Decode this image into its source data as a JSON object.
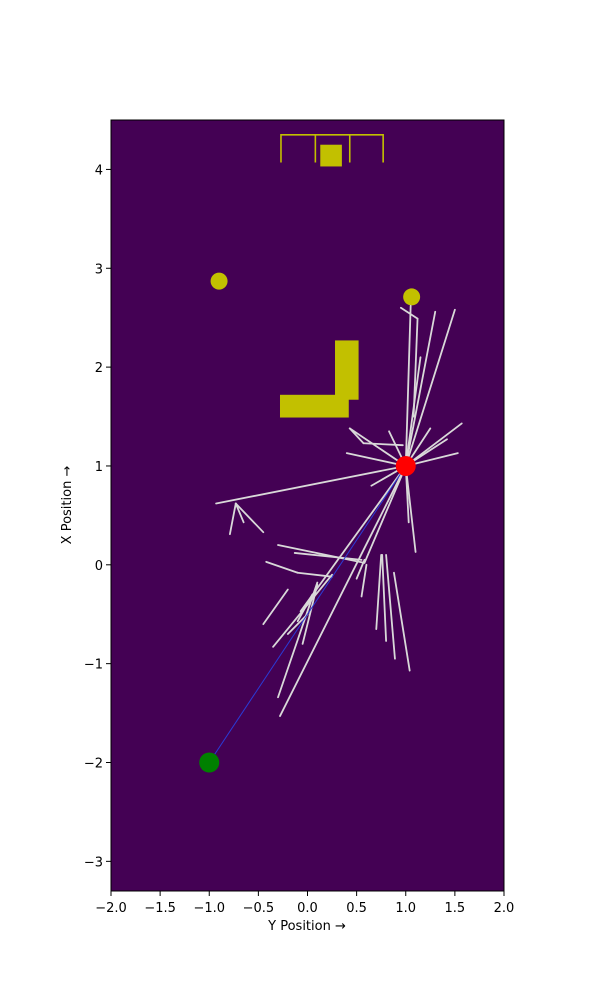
{
  "colors": {
    "background": "#440154",
    "obstacle": "#c2c000",
    "tree_edge": "#d9d9d9",
    "path": "#2b3bd6",
    "start": "#008000",
    "goal": "#ff0000"
  },
  "chart_data": {
    "type": "scatter",
    "title": "",
    "xlabel": "Y Position →",
    "ylabel": "X Position →",
    "xlim": [
      -2.0,
      2.0
    ],
    "ylim": [
      -3.3,
      4.5
    ],
    "grid": false,
    "x_ticks": [
      -2.0,
      -1.5,
      -1.0,
      -0.5,
      0.0,
      0.5,
      1.0,
      1.5,
      2.0
    ],
    "x_tick_labels": [
      "−2.0",
      "−1.5",
      "−1.0",
      "−0.5",
      "0.0",
      "0.5",
      "1.0",
      "1.5",
      "2.0"
    ],
    "y_ticks": [
      -3,
      -2,
      -1,
      0,
      1,
      2,
      3,
      4
    ],
    "y_tick_labels": [
      "−3",
      "−2",
      "−1",
      "0",
      "1",
      "2",
      "3",
      "4"
    ],
    "start": {
      "x": -1.0,
      "y": -2.0
    },
    "goal": {
      "x": 1.0,
      "y": 1.0
    },
    "obstacles": {
      "rects": [
        {
          "x0": -0.28,
          "x1": 0.42,
          "y0": 1.49,
          "y1": 1.72
        },
        {
          "x0": 0.28,
          "x1": 0.52,
          "y0": 1.67,
          "y1": 2.27
        },
        {
          "x0": 0.13,
          "x1": 0.35,
          "y0": 4.03,
          "y1": 4.25
        }
      ],
      "circles": [
        {
          "x": -0.9,
          "y": 2.87,
          "r": 0.08
        },
        {
          "x": 1.06,
          "y": 2.71,
          "r": 0.08
        }
      ],
      "bracket": {
        "x0": -0.27,
        "x1": 0.77,
        "y_top": 4.35,
        "y_bottom": 4.07,
        "dividers": [
          0.08,
          0.43
        ]
      }
    },
    "tree_edges": [
      [
        [
          1.0,
          1.0
        ],
        [
          -0.93,
          0.62
        ]
      ],
      [
        [
          -0.73,
          0.62
        ],
        [
          -0.79,
          0.31
        ]
      ],
      [
        [
          -0.73,
          0.62
        ],
        [
          -0.65,
          0.43
        ]
      ],
      [
        [
          -0.73,
          0.62
        ],
        [
          -0.45,
          0.33
        ]
      ],
      [
        [
          1.0,
          1.0
        ],
        [
          0.43,
          1.38
        ]
      ],
      [
        [
          0.43,
          1.38
        ],
        [
          0.57,
          1.23
        ]
      ],
      [
        [
          0.57,
          1.23
        ],
        [
          0.97,
          1.21
        ]
      ],
      [
        [
          1.0,
          1.0
        ],
        [
          0.4,
          1.13
        ]
      ],
      [
        [
          1.0,
          1.0
        ],
        [
          0.65,
          0.8
        ]
      ],
      [
        [
          1.0,
          1.0
        ],
        [
          0.83,
          1.35
        ]
      ],
      [
        [
          1.0,
          1.0
        ],
        [
          1.05,
          2.62
        ]
      ],
      [
        [
          0.95,
          2.6
        ],
        [
          1.12,
          2.49
        ]
      ],
      [
        [
          1.12,
          2.49
        ],
        [
          1.08,
          1.5
        ]
      ],
      [
        [
          1.0,
          1.0
        ],
        [
          1.3,
          2.56
        ]
      ],
      [
        [
          1.0,
          1.0
        ],
        [
          1.5,
          2.58
        ]
      ],
      [
        [
          1.0,
          1.0
        ],
        [
          1.15,
          2.1
        ]
      ],
      [
        [
          1.0,
          1.0
        ],
        [
          1.57,
          1.43
        ]
      ],
      [
        [
          1.0,
          1.0
        ],
        [
          1.53,
          1.13
        ]
      ],
      [
        [
          1.0,
          1.0
        ],
        [
          1.42,
          1.27
        ]
      ],
      [
        [
          1.0,
          1.0
        ],
        [
          1.25,
          1.38
        ]
      ],
      [
        [
          1.0,
          1.0
        ],
        [
          1.1,
          0.13
        ]
      ],
      [
        [
          1.0,
          1.0
        ],
        [
          1.03,
          0.43
        ]
      ],
      [
        [
          1.0,
          1.0
        ],
        [
          -0.28,
          -1.53
        ]
      ],
      [
        [
          1.0,
          1.0
        ],
        [
          -0.07,
          -0.47
        ]
      ],
      [
        [
          1.0,
          1.0
        ],
        [
          0.58,
          0.02
        ]
      ],
      [
        [
          0.58,
          0.02
        ],
        [
          -0.3,
          0.2
        ]
      ],
      [
        [
          -0.13,
          0.12
        ],
        [
          0.55,
          0.05
        ]
      ],
      [
        [
          -0.42,
          0.03
        ],
        [
          -0.1,
          -0.08
        ]
      ],
      [
        [
          -0.1,
          -0.08
        ],
        [
          0.25,
          -0.12
        ]
      ],
      [
        [
          0.75,
          0.1
        ],
        [
          0.7,
          -0.65
        ]
      ],
      [
        [
          0.76,
          0.1
        ],
        [
          0.8,
          -0.77
        ]
      ],
      [
        [
          0.8,
          0.1
        ],
        [
          0.89,
          -0.95
        ]
      ],
      [
        [
          0.88,
          -0.08
        ],
        [
          1.04,
          -1.07
        ]
      ],
      [
        [
          0.5,
          -0.14
        ],
        [
          0.58,
          0.05
        ]
      ],
      [
        [
          0.55,
          -0.32
        ],
        [
          0.6,
          0.0
        ]
      ],
      [
        [
          -0.2,
          -0.25
        ],
        [
          -0.45,
          -0.6
        ]
      ],
      [
        [
          0.25,
          -0.1
        ],
        [
          -0.35,
          -0.83
        ]
      ],
      [
        [
          0.05,
          -0.3
        ],
        [
          -0.1,
          -0.57
        ]
      ],
      [
        [
          0.1,
          -0.18
        ],
        [
          -0.3,
          -1.34
        ]
      ],
      [
        [
          0.1,
          -0.2
        ],
        [
          -0.05,
          -0.8
        ]
      ],
      [
        [
          0.0,
          -0.5
        ],
        [
          -0.2,
          -0.7
        ]
      ]
    ],
    "path": [
      [
        1.0,
        1.0
      ],
      [
        -1.0,
        -2.0
      ]
    ]
  }
}
